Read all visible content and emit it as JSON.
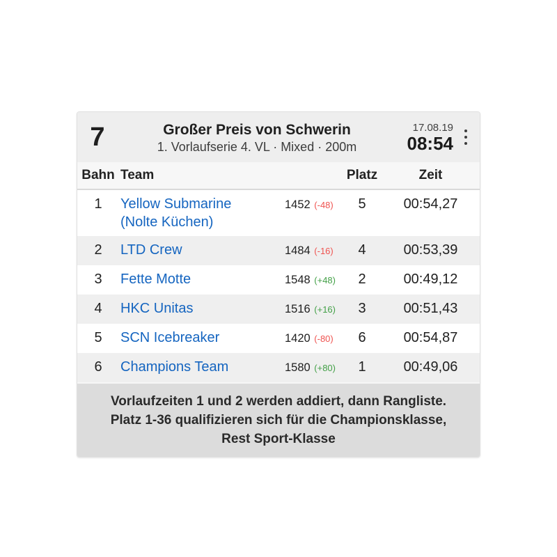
{
  "card": {
    "header": {
      "race_number": "7",
      "title": "Großer Preis von Schwerin",
      "subtitle": "1. Vorlaufserie 4. VL · Mixed · 200m",
      "date": "17.08.19",
      "time": "08:54",
      "menu_icon": "kebab-menu-icon"
    },
    "table": {
      "columns": [
        "Bahn",
        "Team",
        "Platz",
        "Zeit"
      ],
      "rows": [
        {
          "bahn": "1",
          "team": "Yellow Submarine (Nolte Küchen)",
          "rating": "1452",
          "change": "(-48)",
          "change_dir": "down",
          "platz": "5",
          "zeit": "00:54,27"
        },
        {
          "bahn": "2",
          "team": "LTD Crew",
          "rating": "1484",
          "change": "(-16)",
          "change_dir": "down",
          "platz": "4",
          "zeit": "00:53,39"
        },
        {
          "bahn": "3",
          "team": "Fette Motte",
          "rating": "1548",
          "change": "(+48)",
          "change_dir": "up",
          "platz": "2",
          "zeit": "00:49,12"
        },
        {
          "bahn": "4",
          "team": "HKC Unitas",
          "rating": "1516",
          "change": "(+16)",
          "change_dir": "up",
          "platz": "3",
          "zeit": "00:51,43"
        },
        {
          "bahn": "5",
          "team": "SCN Icebreaker",
          "rating": "1420",
          "change": "(-80)",
          "change_dir": "down",
          "platz": "6",
          "zeit": "00:54,87"
        },
        {
          "bahn": "6",
          "team": "Champions Team",
          "rating": "1580",
          "change": "(+80)",
          "change_dir": "up",
          "platz": "1",
          "zeit": "00:49,06"
        }
      ]
    },
    "footer": {
      "note": "Vorlaufzeiten 1 und 2 werden addiert, dann Rangliste. Platz 1-36 qualifizieren sich für die Championsklasse, Rest Sport-Klasse"
    },
    "colors": {
      "team_link": "#1565c0",
      "positive_change": "#43a047",
      "negative_change": "#ef5350",
      "card_header_bg": "#eeeeee",
      "row_stripe_bg": "#efefef",
      "footer_bg": "#dcdcdc"
    }
  }
}
